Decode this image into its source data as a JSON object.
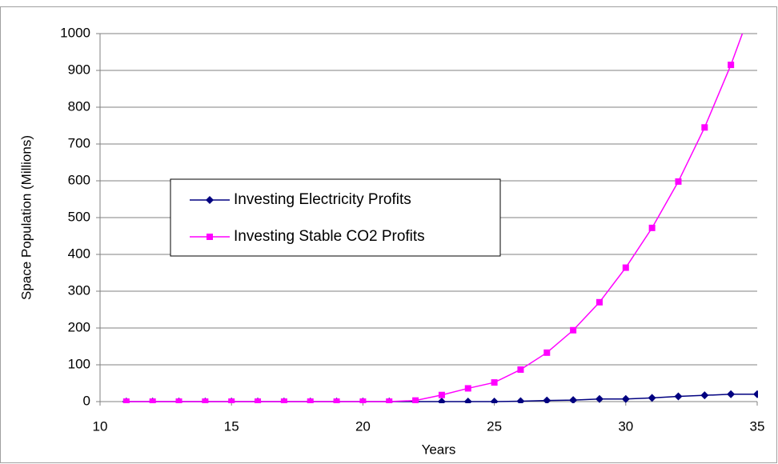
{
  "chart_data": {
    "type": "line",
    "x": [
      11,
      12,
      13,
      14,
      15,
      16,
      17,
      18,
      19,
      20,
      21,
      22,
      23,
      24,
      25,
      26,
      27,
      28,
      29,
      30,
      31,
      32,
      33,
      34,
      35
    ],
    "series": [
      {
        "name": "Investing Electricity Profits",
        "color": "#000080",
        "marker": "diamond",
        "values": [
          0,
          0,
          0,
          0,
          0,
          0,
          0,
          0,
          0,
          0,
          0,
          0,
          0,
          0,
          0,
          1,
          3,
          4,
          7,
          7,
          10,
          14,
          17,
          20,
          20
        ]
      },
      {
        "name": "Investing Stable CO2 Profits",
        "color": "#ff00ff",
        "marker": "square",
        "values": [
          0,
          0,
          0,
          0,
          0,
          0,
          0,
          0,
          0,
          0,
          0,
          3,
          18,
          36,
          52,
          87,
          133,
          194,
          270,
          364,
          472,
          598,
          745,
          915,
          1110
        ]
      }
    ],
    "xlabel": "Years",
    "ylabel": "Space Population (Millions)",
    "xlim": [
      10,
      35
    ],
    "xticks": [
      10,
      15,
      20,
      25,
      30,
      35
    ],
    "ylim": [
      0,
      1000
    ],
    "yticks": [
      0,
      100,
      200,
      300,
      400,
      500,
      600,
      700,
      800,
      900,
      1000
    ],
    "grid": true,
    "legend": "left"
  }
}
